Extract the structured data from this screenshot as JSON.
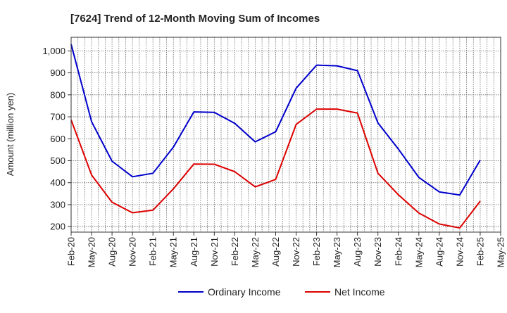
{
  "chart_data": {
    "type": "line",
    "title": "[7624]  Trend of 12-Month Moving Sum of Incomes",
    "xlabel": "",
    "ylabel": "Amount (million yen)",
    "ylim": [
      175,
      1062
    ],
    "yticks": [
      200,
      300,
      400,
      500,
      600,
      700,
      800,
      900,
      1000
    ],
    "ytick_labels": [
      "200",
      "300",
      "400",
      "500",
      "600",
      "700",
      "800",
      "900",
      "1,000"
    ],
    "x_tick_labels": [
      "Feb-20",
      "May-20",
      "Aug-20",
      "Nov-20",
      "Feb-21",
      "May-21",
      "Aug-21",
      "Nov-21",
      "Feb-22",
      "May-22",
      "Aug-22",
      "Nov-22",
      "Feb-23",
      "May-23",
      "Aug-23",
      "Nov-23",
      "Feb-24",
      "May-24",
      "Aug-24",
      "Nov-24",
      "Feb-25",
      "May-25"
    ],
    "categories": [
      "Feb-20",
      "May-20",
      "Aug-20",
      "Nov-20",
      "Feb-21",
      "May-21",
      "Aug-21",
      "Nov-21",
      "Feb-22",
      "May-22",
      "Aug-22",
      "Nov-22",
      "Feb-23",
      "May-23",
      "Aug-23",
      "Nov-23",
      "Feb-24",
      "May-24",
      "Aug-24",
      "Nov-24",
      "Feb-25"
    ],
    "grid": true,
    "legend_position": "bottom",
    "series": [
      {
        "name": "Ordinary Income",
        "color": "#0000cc",
        "values": [
          1030,
          678,
          498,
          427,
          443,
          562,
          722,
          720,
          670,
          586,
          632,
          830,
          935,
          932,
          910,
          672,
          553,
          424,
          358,
          344,
          503
        ]
      },
      {
        "name": "Net Income",
        "color": "#dd0000",
        "values": [
          686,
          435,
          311,
          263,
          275,
          372,
          485,
          484,
          450,
          381,
          415,
          665,
          735,
          735,
          717,
          443,
          345,
          262,
          212,
          194,
          316
        ]
      }
    ]
  }
}
